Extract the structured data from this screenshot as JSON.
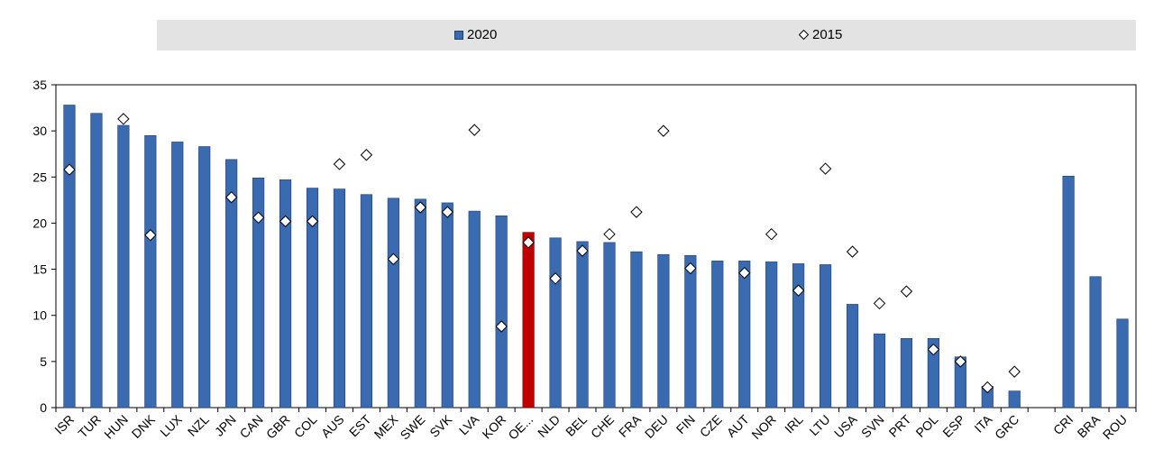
{
  "legend": {
    "series_2020": "2020",
    "series_2015": "2015"
  },
  "colors": {
    "bar": "#3a6aaf",
    "bar_stroke": "#1d3e73",
    "highlight_bar": "#c00000",
    "marker_stroke": "#000000",
    "legend_bg": "#e3e3e3"
  },
  "chart_data": {
    "type": "bar",
    "title": "",
    "xlabel": "",
    "ylabel": "",
    "ylim": [
      0,
      35
    ],
    "yticks": [
      0,
      5,
      10,
      15,
      20,
      25,
      30,
      35
    ],
    "grid": false,
    "legend_position": "top",
    "categories": [
      "ISR",
      "TUR",
      "HUN",
      "DNK",
      "LUX",
      "NZL",
      "JPN",
      "CAN",
      "GBR",
      "COL",
      "AUS",
      "EST",
      "MEX",
      "SWE",
      "SVK",
      "LVA",
      "KOR",
      "OE...",
      "NLD",
      "BEL",
      "CHE",
      "FRA",
      "DEU",
      "FIN",
      "CZE",
      "AUT",
      "NOR",
      "IRL",
      "LTU",
      "USA",
      "SVN",
      "PRT",
      "POL",
      "ESP",
      "ITA",
      "GRC",
      "",
      "CRI",
      "BRA",
      "ROU"
    ],
    "highlight_category": "OE...",
    "series": [
      {
        "name": "2020",
        "kind": "bar",
        "values": [
          32.8,
          31.9,
          30.6,
          29.5,
          28.8,
          28.3,
          26.9,
          24.9,
          24.7,
          23.8,
          23.7,
          23.1,
          22.7,
          22.6,
          22.2,
          21.3,
          20.8,
          19.0,
          18.4,
          18.0,
          17.9,
          16.9,
          16.6,
          16.5,
          15.9,
          15.9,
          15.8,
          15.6,
          15.5,
          11.2,
          8.0,
          7.5,
          7.5,
          5.5,
          2.3,
          1.8,
          null,
          25.1,
          14.2,
          9.6
        ]
      },
      {
        "name": "2015",
        "kind": "marker",
        "values": [
          25.8,
          null,
          31.3,
          18.7,
          null,
          null,
          22.8,
          20.6,
          20.2,
          20.2,
          26.4,
          27.4,
          16.1,
          21.7,
          21.2,
          30.1,
          8.8,
          17.9,
          14.0,
          17.0,
          18.8,
          21.2,
          30.0,
          15.1,
          null,
          14.6,
          18.8,
          12.7,
          25.9,
          16.9,
          11.3,
          12.6,
          6.3,
          5.0,
          2.2,
          3.9,
          null,
          null,
          null,
          null
        ]
      }
    ]
  }
}
